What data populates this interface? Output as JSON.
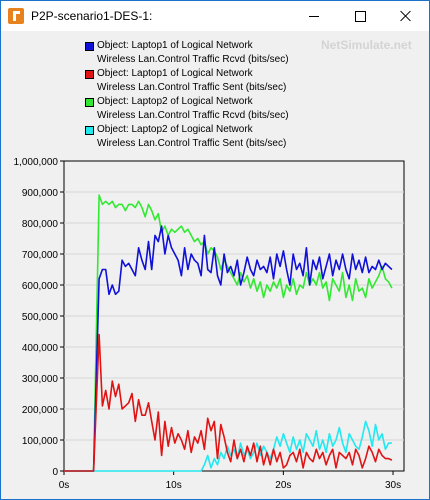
{
  "window": {
    "title": "P2P-scenario1-DES-1:"
  },
  "watermark": "NetSimulate.net",
  "colors": {
    "blue": "#1010d8",
    "red": "#e01414",
    "green": "#33e833",
    "cyan": "#22e8f0",
    "plot_bg": "#f0f0f0",
    "grid": "#d6d6d6"
  },
  "chart_data": {
    "type": "line",
    "title": "",
    "xlabel": "",
    "ylabel": "",
    "xlim": [
      0,
      31
    ],
    "ylim": [
      0,
      1000000
    ],
    "x_ticks": [
      "0s",
      "10s",
      "20s",
      "30s"
    ],
    "x_tick_values": [
      0,
      10,
      20,
      30
    ],
    "y_ticks": [
      "0",
      "100,000",
      "200,000",
      "300,000",
      "400,000",
      "500,000",
      "600,000",
      "700,000",
      "800,000",
      "900,000",
      "1,000,000"
    ],
    "y_tick_values": [
      0,
      100000,
      200000,
      300000,
      400000,
      500000,
      600000,
      700000,
      800000,
      900000,
      1000000
    ],
    "grid": "horizontal",
    "legend_position": "top",
    "series": [
      {
        "name": "Object: Laptop1 of Logical Network",
        "metric": "Wireless Lan.Control Traffic Rcvd (bits/sec)",
        "color": "#1010d8",
        "x": [
          0,
          2.7,
          3.2,
          3.5,
          3.8,
          4.1,
          4.4,
          4.7,
          5.0,
          5.3,
          5.6,
          5.9,
          6.2,
          6.5,
          6.8,
          7.1,
          7.4,
          7.7,
          8.0,
          8.3,
          8.6,
          8.9,
          9.2,
          9.5,
          9.8,
          10.1,
          10.4,
          10.7,
          11.0,
          11.3,
          11.6,
          11.9,
          12.2,
          12.5,
          12.8,
          13.1,
          13.4,
          13.7,
          14.0,
          14.3,
          14.6,
          14.9,
          15.2,
          15.5,
          15.8,
          16.1,
          16.4,
          16.7,
          17.0,
          17.3,
          17.6,
          17.9,
          18.2,
          18.5,
          18.8,
          19.1,
          19.4,
          19.7,
          20.0,
          20.3,
          20.6,
          20.9,
          21.2,
          21.5,
          21.8,
          22.1,
          22.4,
          22.7,
          23.0,
          23.3,
          23.6,
          23.9,
          24.2,
          24.5,
          24.8,
          25.1,
          25.4,
          25.7,
          26.0,
          26.3,
          26.6,
          26.9,
          27.2,
          27.5,
          27.8,
          28.1,
          28.4,
          28.7,
          29.0,
          29.3,
          29.6,
          29.9
        ],
        "y": [
          0,
          0,
          620000,
          650000,
          650000,
          570000,
          600000,
          570000,
          580000,
          680000,
          660000,
          670000,
          650000,
          630000,
          720000,
          680000,
          650000,
          740000,
          650000,
          760000,
          740000,
          790000,
          700000,
          760000,
          720000,
          700000,
          680000,
          630000,
          720000,
          650000,
          700000,
          680000,
          670000,
          630000,
          760000,
          650000,
          640000,
          720000,
          630000,
          600000,
          700000,
          640000,
          660000,
          630000,
          680000,
          600000,
          640000,
          690000,
          650000,
          630000,
          680000,
          650000,
          660000,
          640000,
          690000,
          620000,
          700000,
          660000,
          710000,
          650000,
          600000,
          700000,
          650000,
          670000,
          630000,
          720000,
          600000,
          680000,
          650000,
          690000,
          620000,
          660000,
          700000,
          630000,
          680000,
          650000,
          700000,
          650000,
          620000,
          700000,
          650000,
          680000,
          640000,
          690000,
          640000,
          660000,
          650000,
          680000,
          650000,
          670000,
          660000,
          650000
        ]
      },
      {
        "name": "Object: Laptop1 of Logical Network",
        "metric": "Wireless Lan.Control Traffic Sent (bits/sec)",
        "color": "#e01414",
        "x": [
          0,
          2.7,
          3.2,
          3.5,
          3.8,
          4.1,
          4.4,
          4.7,
          5.0,
          5.3,
          5.6,
          5.9,
          6.2,
          6.5,
          6.8,
          7.1,
          7.4,
          7.7,
          8.0,
          8.3,
          8.6,
          8.9,
          9.2,
          9.5,
          9.8,
          10.1,
          10.4,
          10.7,
          11.0,
          11.3,
          11.6,
          11.9,
          12.2,
          12.5,
          12.8,
          13.1,
          13.4,
          13.7,
          14.0,
          14.3,
          14.6,
          14.9,
          15.2,
          15.5,
          15.8,
          16.1,
          16.4,
          16.7,
          17.0,
          17.3,
          17.6,
          17.9,
          18.2,
          18.5,
          18.8,
          19.1,
          19.4,
          19.7,
          20.0,
          20.3,
          20.6,
          20.9,
          21.2,
          21.5,
          21.8,
          22.1,
          22.4,
          22.7,
          23.0,
          23.3,
          23.6,
          23.9,
          24.2,
          24.5,
          24.8,
          25.1,
          25.4,
          25.7,
          26.0,
          26.3,
          26.6,
          26.9,
          27.2,
          27.5,
          27.8,
          28.1,
          28.4,
          28.7,
          29.0,
          29.3,
          29.6,
          29.9
        ],
        "y": [
          0,
          0,
          440000,
          210000,
          260000,
          200000,
          290000,
          240000,
          280000,
          200000,
          210000,
          220000,
          250000,
          160000,
          230000,
          180000,
          180000,
          220000,
          160000,
          100000,
          190000,
          50000,
          160000,
          80000,
          140000,
          90000,
          120000,
          100000,
          70000,
          130000,
          60000,
          110000,
          90000,
          130000,
          70000,
          170000,
          130000,
          160000,
          40000,
          150000,
          110000,
          60000,
          30000,
          100000,
          40000,
          70000,
          30000,
          80000,
          50000,
          90000,
          30000,
          80000,
          20000,
          60000,
          20000,
          70000,
          30000,
          60000,
          10000,
          20000,
          50000,
          60000,
          30000,
          70000,
          10000,
          60000,
          40000,
          30000,
          70000,
          40000,
          60000,
          20000,
          50000,
          70000,
          10000,
          60000,
          50000,
          40000,
          60000,
          20000,
          70000,
          50000,
          10000,
          40000,
          80000,
          60000,
          30000,
          70000,
          50000,
          40000,
          40000,
          35000
        ]
      },
      {
        "name": "Object: Laptop2 of Logical Network",
        "metric": "Wireless Lan.Control Traffic Rcvd (bits/sec)",
        "color": "#33e833",
        "x": [
          0,
          2.7,
          3.2,
          3.5,
          3.8,
          4.1,
          4.4,
          4.7,
          5.0,
          5.3,
          5.6,
          5.9,
          6.2,
          6.5,
          6.8,
          7.1,
          7.4,
          7.7,
          8.0,
          8.3,
          8.6,
          8.9,
          9.2,
          9.5,
          9.8,
          10.1,
          10.4,
          10.7,
          11.0,
          11.3,
          11.6,
          11.9,
          12.2,
          12.5,
          12.8,
          13.1,
          13.4,
          13.7,
          14.0,
          14.3,
          14.6,
          14.9,
          15.2,
          15.5,
          15.8,
          16.1,
          16.4,
          16.7,
          17.0,
          17.3,
          17.6,
          17.9,
          18.2,
          18.5,
          18.8,
          19.1,
          19.4,
          19.7,
          20.0,
          20.3,
          20.6,
          20.9,
          21.2,
          21.5,
          21.8,
          22.1,
          22.4,
          22.7,
          23.0,
          23.3,
          23.6,
          23.9,
          24.2,
          24.5,
          24.8,
          25.1,
          25.4,
          25.7,
          26.0,
          26.3,
          26.6,
          26.9,
          27.2,
          27.5,
          27.8,
          28.1,
          28.4,
          28.7,
          29.0,
          29.3,
          29.6,
          29.9
        ],
        "y": [
          0,
          0,
          890000,
          860000,
          870000,
          860000,
          870000,
          850000,
          860000,
          860000,
          840000,
          860000,
          860000,
          850000,
          870000,
          850000,
          820000,
          860000,
          840000,
          810000,
          830000,
          770000,
          790000,
          760000,
          780000,
          770000,
          780000,
          790000,
          770000,
          780000,
          760000,
          740000,
          750000,
          730000,
          740000,
          700000,
          720000,
          710000,
          690000,
          650000,
          680000,
          660000,
          640000,
          620000,
          600000,
          640000,
          610000,
          630000,
          590000,
          620000,
          580000,
          610000,
          560000,
          600000,
          580000,
          610000,
          590000,
          620000,
          560000,
          600000,
          580000,
          620000,
          570000,
          600000,
          590000,
          640000,
          600000,
          620000,
          600000,
          640000,
          590000,
          610000,
          550000,
          620000,
          600000,
          580000,
          640000,
          560000,
          600000,
          550000,
          620000,
          580000,
          590000,
          560000,
          620000,
          590000,
          610000,
          630000,
          660000,
          620000,
          610000,
          590000
        ]
      },
      {
        "name": "Object: Laptop2 of Logical Network",
        "metric": "Wireless Lan.Control Traffic Sent (bits/sec)",
        "color": "#22e8f0",
        "x": [
          0,
          12.5,
          12.8,
          13.1,
          13.4,
          13.7,
          14.0,
          14.3,
          14.6,
          14.9,
          15.2,
          15.5,
          15.8,
          16.1,
          16.4,
          16.7,
          17.0,
          17.3,
          17.6,
          17.9,
          18.2,
          18.5,
          18.8,
          19.1,
          19.4,
          19.7,
          20.0,
          20.3,
          20.6,
          20.9,
          21.2,
          21.5,
          21.8,
          22.1,
          22.4,
          22.7,
          23.0,
          23.3,
          23.6,
          23.9,
          24.2,
          24.5,
          24.8,
          25.1,
          25.4,
          25.7,
          26.0,
          26.3,
          26.6,
          26.9,
          27.2,
          27.5,
          27.8,
          28.1,
          28.4,
          28.7,
          29.0,
          29.3,
          29.6,
          29.9
        ],
        "y": [
          0,
          0,
          20000,
          50000,
          10000,
          40000,
          20000,
          60000,
          40000,
          80000,
          50000,
          70000,
          40000,
          90000,
          50000,
          70000,
          40000,
          60000,
          90000,
          50000,
          80000,
          60000,
          40000,
          70000,
          110000,
          80000,
          120000,
          90000,
          60000,
          110000,
          70000,
          100000,
          60000,
          120000,
          100000,
          80000,
          130000,
          70000,
          100000,
          60000,
          120000,
          80000,
          100000,
          140000,
          90000,
          60000,
          120000,
          100000,
          80000,
          70000,
          110000,
          160000,
          130000,
          80000,
          150000,
          100000,
          120000,
          70000,
          90000,
          90000
        ]
      }
    ]
  }
}
